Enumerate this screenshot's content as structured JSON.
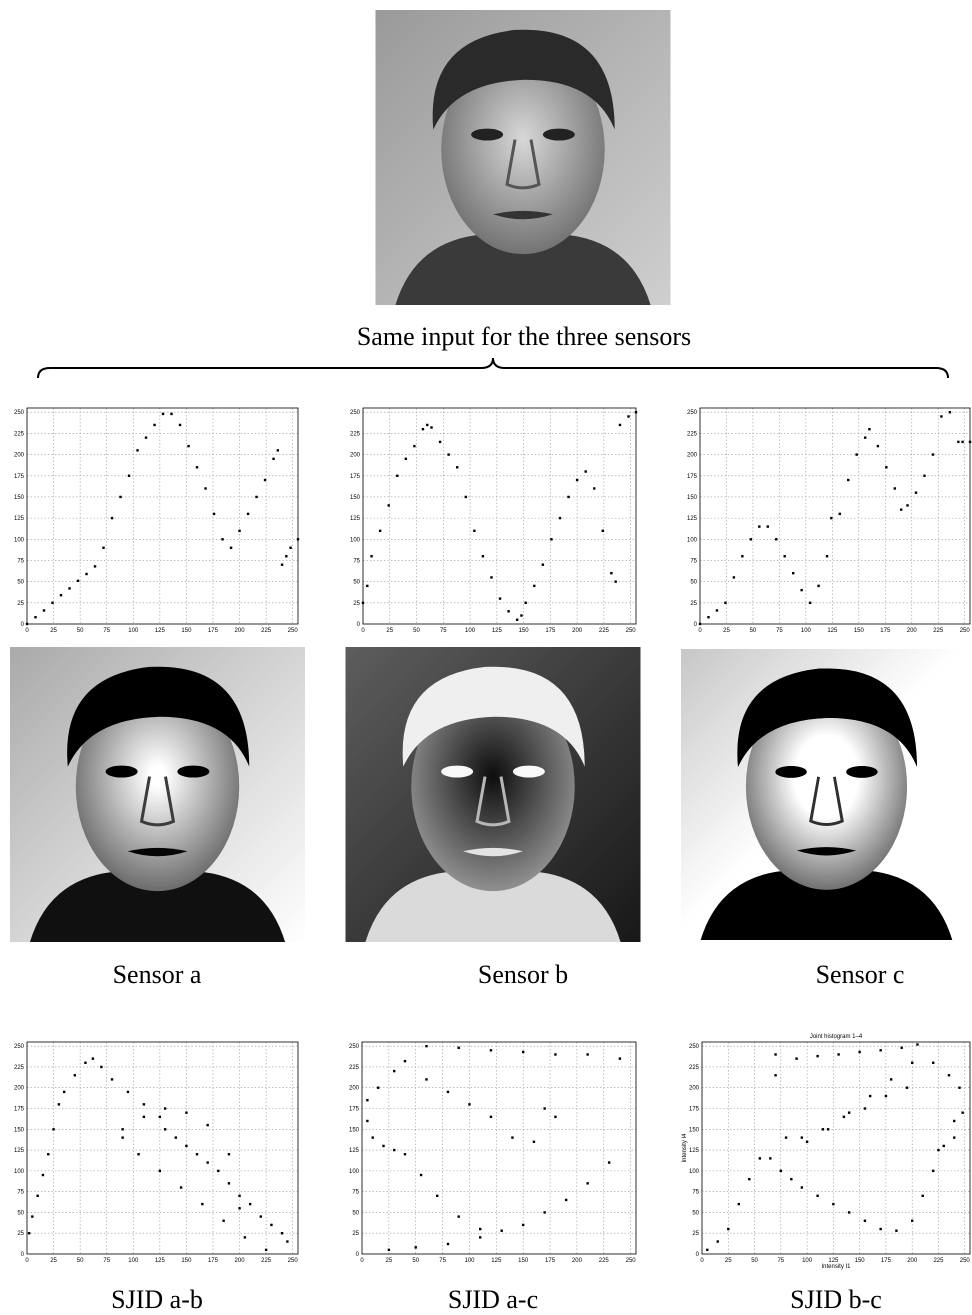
{
  "caption": "Same input for the three sensors",
  "image_captions": [
    "Sensor a",
    "Sensor b",
    "Sensor c"
  ],
  "sjid_captions": [
    "SJID a-b",
    "SJID a-c",
    "SJID b-c"
  ],
  "chart_data": [
    {
      "type": "scatter",
      "color": "#000000",
      "grid": true,
      "xlim": [
        0,
        255
      ],
      "ylim": [
        0,
        255
      ],
      "xticks": [
        0,
        25,
        50,
        75,
        100,
        125,
        150,
        175,
        200,
        225,
        250
      ],
      "yticks": [
        0,
        25,
        50,
        75,
        100,
        125,
        150,
        175,
        200,
        225,
        250
      ],
      "x": [
        0,
        8,
        16,
        24,
        32,
        40,
        48,
        56,
        64,
        72,
        80,
        88,
        96,
        104,
        112,
        120,
        128,
        136,
        144,
        152,
        160,
        168,
        176,
        184,
        192,
        200,
        208,
        216,
        224,
        232,
        236,
        240,
        244,
        248,
        255
      ],
      "y": [
        0,
        8,
        16,
        25,
        34,
        42,
        51,
        59,
        68,
        90,
        125,
        150,
        175,
        205,
        220,
        235,
        248,
        248,
        235,
        210,
        185,
        160,
        130,
        100,
        90,
        110,
        130,
        150,
        170,
        195,
        205,
        70,
        80,
        90,
        100
      ]
    },
    {
      "type": "scatter",
      "color": "#000000",
      "grid": true,
      "xlim": [
        0,
        255
      ],
      "ylim": [
        0,
        255
      ],
      "xticks": [
        0,
        25,
        50,
        75,
        100,
        125,
        150,
        175,
        200,
        225,
        250
      ],
      "yticks": [
        0,
        25,
        50,
        75,
        100,
        125,
        150,
        175,
        200,
        225,
        250
      ],
      "x": [
        0,
        4,
        8,
        16,
        24,
        32,
        40,
        48,
        56,
        60,
        64,
        72,
        80,
        88,
        96,
        104,
        112,
        120,
        128,
        136,
        144,
        148,
        152,
        160,
        168,
        176,
        184,
        192,
        200,
        208,
        216,
        224,
        232,
        236,
        240,
        248,
        255
      ],
      "y": [
        25,
        45,
        80,
        110,
        140,
        175,
        195,
        210,
        230,
        235,
        232,
        215,
        200,
        185,
        150,
        110,
        80,
        55,
        30,
        15,
        5,
        10,
        25,
        45,
        70,
        100,
        125,
        150,
        170,
        180,
        160,
        110,
        60,
        50,
        235,
        245,
        250
      ]
    },
    {
      "type": "scatter",
      "color": "#000000",
      "grid": true,
      "xlim": [
        0,
        255
      ],
      "ylim": [
        0,
        255
      ],
      "xticks": [
        0,
        25,
        50,
        75,
        100,
        125,
        150,
        175,
        200,
        225,
        250
      ],
      "yticks": [
        0,
        25,
        50,
        75,
        100,
        125,
        150,
        175,
        200,
        225,
        250
      ],
      "x": [
        0,
        8,
        16,
        24,
        32,
        40,
        48,
        56,
        64,
        72,
        80,
        88,
        96,
        104,
        112,
        120,
        124,
        132,
        140,
        148,
        156,
        160,
        168,
        176,
        184,
        190,
        196,
        204,
        212,
        220,
        228,
        236,
        244,
        248,
        255
      ],
      "y": [
        0,
        8,
        16,
        25,
        55,
        80,
        100,
        115,
        115,
        100,
        80,
        60,
        40,
        25,
        45,
        80,
        125,
        130,
        170,
        200,
        220,
        230,
        210,
        185,
        160,
        135,
        140,
        155,
        175,
        200,
        245,
        250,
        215,
        215,
        215
      ]
    },
    {
      "type": "scatter",
      "color": "#000000",
      "grid": true,
      "xlim": [
        0,
        255
      ],
      "ylim": [
        0,
        255
      ],
      "xticks": [
        0,
        25,
        50,
        75,
        100,
        125,
        150,
        175,
        200,
        225,
        250
      ],
      "yticks": [
        0,
        25,
        50,
        75,
        100,
        125,
        150,
        175,
        200,
        225,
        250
      ],
      "x": [
        2,
        5,
        10,
        15,
        20,
        25,
        30,
        35,
        45,
        55,
        62,
        70,
        80,
        95,
        110,
        125,
        130,
        140,
        150,
        160,
        170,
        180,
        190,
        200,
        210,
        220,
        230,
        240,
        245,
        225,
        205,
        185,
        165,
        145,
        125,
        105,
        90,
        90,
        110,
        130,
        150,
        170,
        190,
        200
      ],
      "y": [
        25,
        45,
        70,
        95,
        120,
        150,
        180,
        195,
        215,
        230,
        235,
        225,
        210,
        195,
        180,
        165,
        150,
        140,
        130,
        120,
        110,
        100,
        85,
        70,
        60,
        45,
        35,
        25,
        15,
        5,
        20,
        40,
        60,
        80,
        100,
        120,
        140,
        150,
        165,
        175,
        170,
        155,
        120,
        55
      ]
    },
    {
      "type": "scatter",
      "color": "#000000",
      "grid": true,
      "xlim": [
        0,
        255
      ],
      "ylim": [
        0,
        255
      ],
      "xticks": [
        0,
        25,
        50,
        75,
        100,
        125,
        150,
        175,
        200,
        225,
        250
      ],
      "yticks": [
        0,
        25,
        50,
        75,
        100,
        125,
        150,
        175,
        200,
        225,
        250
      ],
      "x": [
        5,
        15,
        30,
        40,
        60,
        80,
        100,
        120,
        140,
        160,
        180,
        170,
        5,
        10,
        20,
        30,
        40,
        55,
        70,
        90,
        110,
        130,
        150,
        170,
        190,
        210,
        230,
        60,
        90,
        120,
        150,
        180,
        210,
        240,
        25,
        50,
        80,
        110
      ],
      "y": [
        185,
        200,
        220,
        232,
        210,
        195,
        180,
        165,
        140,
        135,
        165,
        175,
        160,
        140,
        130,
        125,
        120,
        95,
        70,
        45,
        30,
        28,
        35,
        50,
        65,
        85,
        110,
        250,
        248,
        245,
        243,
        240,
        240,
        235,
        5,
        8,
        12,
        20
      ]
    },
    {
      "type": "scatter",
      "color": "#000000",
      "grid": true,
      "xlim": [
        0,
        255
      ],
      "ylim": [
        0,
        255
      ],
      "title": "Joint histogram 1–4",
      "xlabel": "Intensity I1",
      "ylabel": "Intensity I4",
      "xticks": [
        0,
        25,
        50,
        75,
        100,
        125,
        150,
        175,
        200,
        225,
        250
      ],
      "yticks": [
        0,
        25,
        50,
        75,
        100,
        125,
        150,
        175,
        200,
        225,
        250
      ],
      "x": [
        5,
        15,
        25,
        35,
        45,
        55,
        65,
        75,
        85,
        95,
        110,
        125,
        140,
        155,
        170,
        185,
        200,
        210,
        220,
        230,
        240,
        245,
        248,
        235,
        220,
        200,
        180,
        160,
        140,
        120,
        100,
        80,
        70,
        95,
        115,
        135,
        155,
        175,
        195,
        70,
        90,
        110,
        130,
        150,
        170,
        190,
        205,
        225,
        240
      ],
      "y": [
        5,
        15,
        30,
        60,
        90,
        115,
        115,
        100,
        90,
        80,
        70,
        60,
        50,
        40,
        30,
        28,
        40,
        70,
        100,
        130,
        160,
        200,
        170,
        215,
        230,
        230,
        210,
        190,
        170,
        150,
        135,
        140,
        215,
        140,
        150,
        165,
        175,
        190,
        200,
        240,
        235,
        238,
        240,
        243,
        245,
        248,
        252,
        125,
        140
      ]
    }
  ]
}
